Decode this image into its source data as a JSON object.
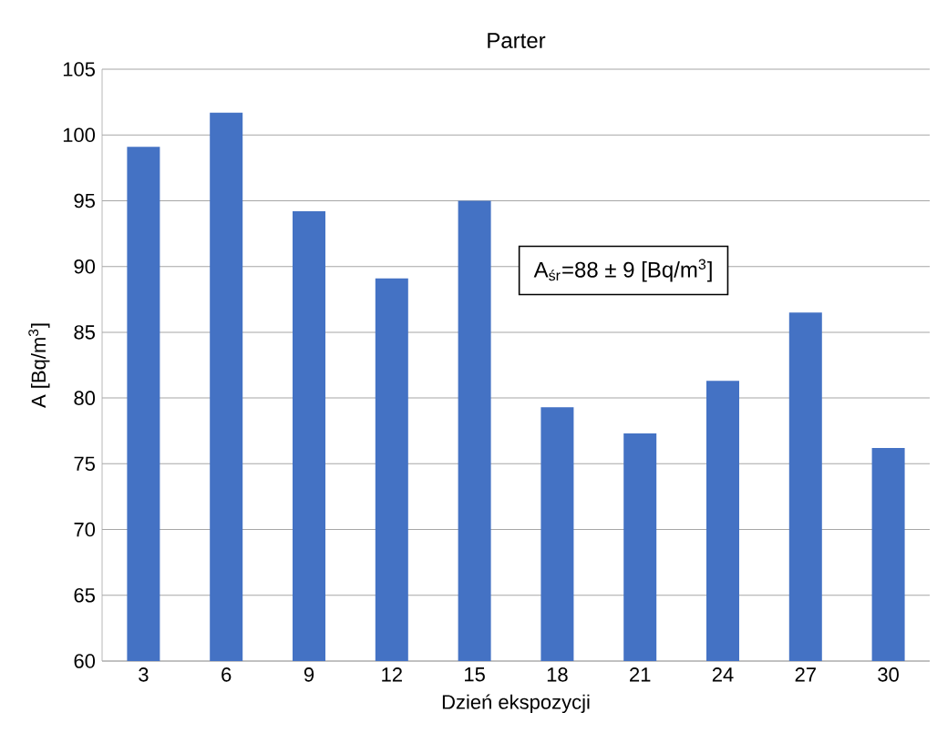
{
  "chart_data": {
    "type": "bar",
    "title": "Parter",
    "xlabel": "Dzień ekspozycji",
    "ylabel": "A [Bq/m$^{3}$]",
    "categories": [
      "3",
      "6",
      "9",
      "12",
      "15",
      "18",
      "21",
      "24",
      "27",
      "30"
    ],
    "values": [
      99.1,
      101.7,
      94.2,
      89.1,
      95.0,
      79.3,
      77.3,
      81.3,
      86.5,
      76.2
    ],
    "color": "#4472c4",
    "ylim": [
      60,
      105
    ],
    "yticks": [
      60,
      65,
      70,
      75,
      80,
      85,
      90,
      95,
      100,
      105
    ],
    "grid": "y",
    "annotations": [
      "A$_{śr}$=88 ± 9 [Bq/m$^{3}$]"
    ]
  }
}
